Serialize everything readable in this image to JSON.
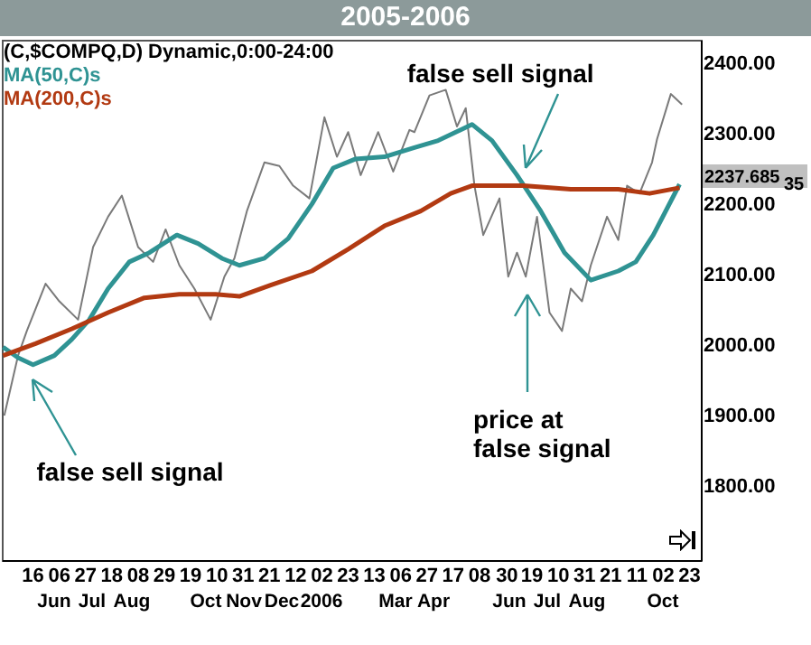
{
  "chart_data": {
    "type": "line",
    "title": "2005-2006",
    "xlim": [
      "2005-04-21",
      "2006-11-01"
    ],
    "xticks": [
      {
        "value": "2005-05-16",
        "label": "16"
      },
      {
        "value": "2005-06-06",
        "label": "06"
      },
      {
        "value": "2005-06-27",
        "label": "27"
      },
      {
        "value": "2005-07-18",
        "label": "18"
      },
      {
        "value": "2005-08-08",
        "label": "08"
      },
      {
        "value": "2005-08-29",
        "label": "29"
      },
      {
        "value": "2005-09-19",
        "label": "19"
      },
      {
        "value": "2005-10-10",
        "label": "10"
      },
      {
        "value": "2005-10-31",
        "label": "31"
      },
      {
        "value": "2005-11-21",
        "label": "21"
      },
      {
        "value": "2005-12-12",
        "label": "12"
      },
      {
        "value": "2006-01-02",
        "label": "02"
      },
      {
        "value": "2006-01-23",
        "label": "23"
      },
      {
        "value": "2006-02-13",
        "label": "13"
      },
      {
        "value": "2006-03-06",
        "label": "06"
      },
      {
        "value": "2006-03-27",
        "label": "27"
      },
      {
        "value": "2006-04-17",
        "label": "17"
      },
      {
        "value": "2006-05-08",
        "label": "08"
      },
      {
        "value": "2006-05-30",
        "label": "30"
      },
      {
        "value": "2006-06-19",
        "label": "19"
      },
      {
        "value": "2006-07-10",
        "label": "10"
      },
      {
        "value": "2006-07-31",
        "label": "31"
      },
      {
        "value": "2006-08-21",
        "label": "21"
      },
      {
        "value": "2006-09-11",
        "label": "11"
      },
      {
        "value": "2006-10-02",
        "label": "02"
      },
      {
        "value": "2006-10-23",
        "label": "23"
      }
    ],
    "ylim": [
      1695,
      2433
    ],
    "yticks": [
      {
        "value": 1800,
        "label": "1800.00"
      },
      {
        "value": 1900,
        "label": "1900.00"
      },
      {
        "value": 2000,
        "label": "2000.00"
      },
      {
        "value": 2100,
        "label": "2100.00"
      },
      {
        "value": 2200,
        "label": "2200.00"
      },
      {
        "value": 2300,
        "label": "2300.00"
      },
      {
        "value": 2400,
        "label": "2400.00"
      }
    ],
    "legend": "top left",
    "grid": false,
    "marker": "none",
    "line_style": "solid",
    "series": [
      {
        "name": "(C,$COMPQ,D) Dynamic,0:00-24:00",
        "color": "#7a7a7a",
        "x": [
          "2005-04-23",
          "2005-05-04",
          "2005-05-11",
          "2005-05-26",
          "2005-06-06",
          "2005-06-21",
          "2005-07-03",
          "2005-07-15",
          "2005-07-26",
          "2005-08-08",
          "2005-08-20",
          "2005-08-30",
          "2005-09-10",
          "2005-09-22",
          "2005-10-05",
          "2005-10-16",
          "2005-10-24",
          "2005-11-03",
          "2005-11-17",
          "2005-11-29",
          "2005-12-10",
          "2005-12-23",
          "2006-01-04",
          "2006-01-14",
          "2006-01-23",
          "2006-02-02",
          "2006-02-16",
          "2006-02-28",
          "2006-03-13",
          "2006-03-17",
          "2006-03-29",
          "2006-04-11",
          "2006-04-20",
          "2006-04-27",
          "2006-05-04",
          "2006-05-11",
          "2006-05-24",
          "2006-05-31",
          "2006-06-07",
          "2006-06-14",
          "2006-06-23",
          "2006-07-03",
          "2006-07-13",
          "2006-07-20",
          "2006-07-29",
          "2006-08-05",
          "2006-08-18",
          "2006-08-27",
          "2006-09-03",
          "2006-09-13",
          "2006-09-23",
          "2006-09-27",
          "2006-10-08",
          "2006-10-17"
        ],
        "values": [
          1900,
          1985,
          2020,
          2087,
          2062,
          2036,
          2139,
          2182,
          2212,
          2139,
          2118,
          2164,
          2113,
          2080,
          2036,
          2097,
          2123,
          2190,
          2259,
          2254,
          2226,
          2208,
          2323,
          2267,
          2302,
          2241,
          2302,
          2246,
          2305,
          2302,
          2354,
          2362,
          2310,
          2336,
          2226,
          2156,
          2208,
          2097,
          2131,
          2097,
          2182,
          2046,
          2020,
          2080,
          2062,
          2113,
          2182,
          2149,
          2226,
          2215,
          2259,
          2292,
          2356,
          2341
        ]
      },
      {
        "name": "MA(50,C)s",
        "color": "#2f9393",
        "x": [
          "2005-04-22",
          "2005-05-04",
          "2005-05-16",
          "2005-06-02",
          "2005-06-16",
          "2005-06-30",
          "2005-07-15",
          "2005-08-01",
          "2005-08-17",
          "2005-09-08",
          "2005-09-25",
          "2005-10-14",
          "2005-10-28",
          "2005-11-17",
          "2005-12-06",
          "2005-12-25",
          "2006-01-11",
          "2006-01-29",
          "2006-02-21",
          "2006-03-17",
          "2006-04-05",
          "2006-05-02",
          "2006-05-18",
          "2006-06-07",
          "2006-06-26",
          "2006-07-15",
          "2006-08-05",
          "2006-08-27",
          "2006-09-10",
          "2006-09-24",
          "2006-10-15"
        ],
        "values": [
          1997,
          1982,
          1972,
          1985,
          2008,
          2036,
          2080,
          2118,
          2131,
          2156,
          2144,
          2123,
          2113,
          2123,
          2151,
          2200,
          2251,
          2264,
          2267,
          2280,
          2290,
          2313,
          2290,
          2241,
          2190,
          2131,
          2092,
          2105,
          2118,
          2156,
          2228
        ]
      },
      {
        "name": "MA(200,C)s",
        "color": "#b23a12",
        "x": [
          "2005-04-22",
          "2005-05-18",
          "2005-06-16",
          "2005-07-15",
          "2005-08-13",
          "2005-09-10",
          "2005-10-09",
          "2005-10-28",
          "2005-11-22",
          "2005-12-25",
          "2006-01-23",
          "2006-02-21",
          "2006-03-22",
          "2006-04-15",
          "2006-05-02",
          "2006-06-12",
          "2006-07-20",
          "2006-08-27",
          "2006-09-21",
          "2006-10-15"
        ],
        "values": [
          1985,
          2002,
          2023,
          2046,
          2067,
          2072,
          2072,
          2069,
          2085,
          2105,
          2136,
          2169,
          2190,
          2215,
          2226,
          2226,
          2221,
          2221,
          2215,
          2223
        ]
      }
    ],
    "annotations": [
      {
        "text": "false sell signal",
        "x": "2006-06-14",
        "y": 2250
      },
      "price at\nfalse signal",
      "false sell signal",
      "2237.685",
      "35",
      "Jun",
      "Jul",
      "Aug",
      "Oct",
      "Nov",
      "Dec",
      "2006",
      "Mar",
      "Apr",
      "Jun",
      "Jul",
      "Aug",
      "Oct"
    ]
  }
}
